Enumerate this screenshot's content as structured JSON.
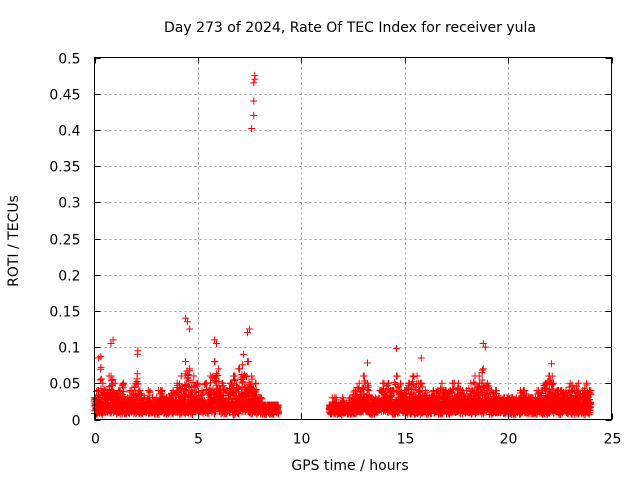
{
  "chart_data": {
    "type": "scatter",
    "title": "Day 273 of 2024, Rate Of TEC Index for receiver yula",
    "xlabel": "GPS time / hours",
    "ylabel": "ROTI / TECUs",
    "xlim": [
      0,
      25
    ],
    "ylim": [
      0,
      0.5
    ],
    "xticks": [
      0,
      5,
      10,
      15,
      20,
      25
    ],
    "xtick_labels": [
      "0",
      "5",
      "10",
      "15",
      "20",
      "25"
    ],
    "yticks": [
      0,
      0.05,
      0.1,
      0.15,
      0.2,
      0.25,
      0.3,
      0.35,
      0.4,
      0.45,
      0.5
    ],
    "ytick_labels": [
      "0",
      "0.05",
      "0.1",
      "0.15",
      "0.2",
      "0.25",
      "0.3",
      "0.35",
      "0.4",
      "0.45",
      "0.5"
    ],
    "grid": true,
    "marker": "plus",
    "color": "#ff0000",
    "series": [
      {
        "name": "ROTI",
        "x": [
          0.0,
          0.2,
          0.4,
          0.6,
          0.8,
          1.0,
          1.2,
          1.4,
          1.6,
          1.8,
          2.0,
          2.2,
          2.4,
          2.6,
          2.8,
          3.0,
          3.2,
          3.4,
          3.6,
          3.8,
          4.0,
          4.2,
          4.4,
          4.6,
          4.8,
          5.0,
          5.2,
          5.4,
          5.6,
          5.8,
          6.0,
          6.2,
          6.4,
          6.6,
          6.8,
          7.0,
          7.2,
          7.4,
          7.6,
          7.8,
          8.0,
          8.2,
          8.4,
          8.6,
          8.8,
          11.4,
          11.6,
          11.8,
          12.0,
          12.2,
          12.4,
          12.6,
          12.8,
          13.0,
          13.2,
          13.4,
          13.6,
          13.8,
          14.0,
          14.2,
          14.4,
          14.6,
          14.8,
          15.0,
          15.2,
          15.4,
          15.6,
          15.8,
          16.0,
          16.2,
          16.4,
          16.6,
          16.8,
          17.0,
          17.2,
          17.4,
          17.6,
          17.8,
          18.0,
          18.2,
          18.4,
          18.6,
          18.8,
          19.0,
          19.2,
          19.4,
          19.6,
          19.8,
          20.0,
          20.2,
          20.4,
          20.6,
          20.8,
          21.0,
          21.2,
          21.4,
          21.6,
          21.8,
          22.0,
          22.2,
          22.4,
          22.6,
          22.8,
          23.0,
          23.2,
          23.4,
          23.6,
          23.8,
          24.0,
          0.2,
          0.3,
          0.8,
          0.9,
          2.1,
          4.4,
          4.5,
          4.6,
          5.8,
          5.9,
          7.4,
          7.5,
          7.6,
          7.7,
          7.7,
          7.7,
          7.75,
          7.75,
          13.2,
          14.6,
          15.8,
          18.8,
          18.9,
          22.1
        ],
        "y": [
          0.03,
          0.04,
          0.05,
          0.04,
          0.06,
          0.05,
          0.04,
          0.05,
          0.03,
          0.04,
          0.05,
          0.04,
          0.03,
          0.04,
          0.03,
          0.03,
          0.04,
          0.03,
          0.03,
          0.04,
          0.05,
          0.06,
          0.08,
          0.07,
          0.06,
          0.05,
          0.04,
          0.05,
          0.06,
          0.08,
          0.07,
          0.05,
          0.04,
          0.05,
          0.06,
          0.07,
          0.09,
          0.08,
          0.06,
          0.05,
          0.03,
          0.02,
          0.02,
          0.02,
          0.02,
          0.02,
          0.03,
          0.02,
          0.03,
          0.02,
          0.03,
          0.04,
          0.05,
          0.06,
          0.05,
          0.03,
          0.03,
          0.04,
          0.05,
          0.05,
          0.04,
          0.06,
          0.05,
          0.04,
          0.05,
          0.06,
          0.06,
          0.05,
          0.04,
          0.03,
          0.04,
          0.04,
          0.05,
          0.04,
          0.04,
          0.05,
          0.05,
          0.04,
          0.04,
          0.05,
          0.06,
          0.06,
          0.07,
          0.05,
          0.04,
          0.04,
          0.03,
          0.03,
          0.03,
          0.03,
          0.03,
          0.04,
          0.04,
          0.03,
          0.03,
          0.04,
          0.04,
          0.05,
          0.06,
          0.05,
          0.04,
          0.04,
          0.04,
          0.05,
          0.04,
          0.05,
          0.04,
          0.05,
          0.04,
          0.085,
          0.087,
          0.105,
          0.11,
          0.095,
          0.14,
          0.135,
          0.125,
          0.11,
          0.105,
          0.12,
          0.125,
          0.402,
          0.42,
          0.44,
          0.465,
          0.47,
          0.475,
          0.078,
          0.098,
          0.085,
          0.105,
          0.1,
          0.077
        ]
      }
    ]
  }
}
